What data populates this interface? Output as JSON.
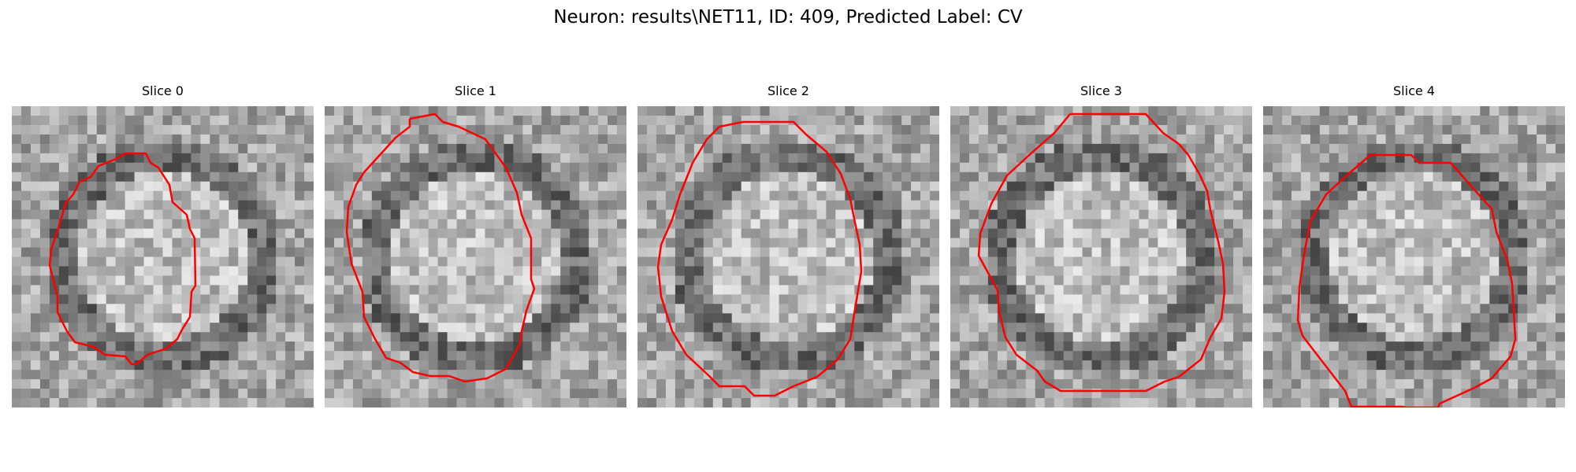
{
  "figure": {
    "title": "Neuron: results\\NET11, ID: 409, Predicted Label: CV"
  },
  "panels": [
    {
      "title": "Slice 0"
    },
    {
      "title": "Slice 1"
    },
    {
      "title": "Slice 2"
    },
    {
      "title": "Slice 3"
    },
    {
      "title": "Slice 4"
    }
  ],
  "colors": {
    "contour": "#ff0000",
    "background": "#ffffff"
  }
}
